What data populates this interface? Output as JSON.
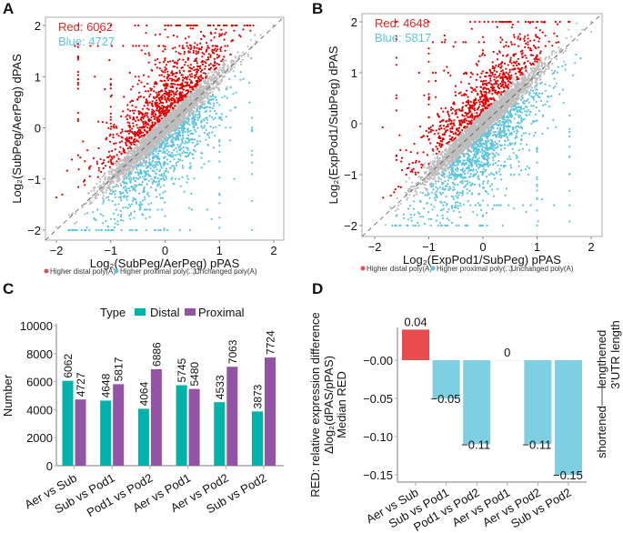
{
  "colors": {
    "red": "#e00000",
    "blue": "#5bc4dd",
    "gray": "#bdbdbd",
    "distal": "#00b2a9",
    "proximal": "#9354a6",
    "red_bar": "#e84c4c",
    "blue_bar": "#7ecfe2"
  },
  "legend_scatter": [
    "Higher distal poly(A)",
    "Higher proximal poly(A)",
    "Unchanged poly(A)"
  ],
  "chart_data": [
    {
      "panel": "A",
      "type": "scatter",
      "xlabel": "Log₂(SubPeg/AerPeg) pPAS",
      "ylabel": "Log₂(SubPeg/AerPeg) dPAS",
      "xlim": [
        -2,
        2
      ],
      "ylim": [
        -2,
        2
      ],
      "xticks": [
        "−2",
        "−1",
        "0",
        "1",
        "2"
      ],
      "yticks": [
        "−2",
        "−1",
        "0",
        "1",
        "2"
      ],
      "counts": {
        "red": 6062,
        "blue": 4727
      },
      "count_labels": {
        "red": "Red: 6062",
        "blue": "Blue: 4727"
      },
      "diagonal": "y = x (dashed)"
    },
    {
      "panel": "B",
      "type": "scatter",
      "xlabel": "Log₂(ExpPod1/SubPeg) pPAS",
      "ylabel": "Log₂(ExpPod1/SubPeg) dPAS",
      "xlim": [
        -2,
        2
      ],
      "ylim": [
        -2,
        2
      ],
      "xticks": [
        "−2",
        "−1",
        "0",
        "1",
        "2"
      ],
      "yticks": [
        "−2",
        "−1",
        "0",
        "1",
        "2"
      ],
      "counts": {
        "red": 4648,
        "blue": 5817
      },
      "count_labels": {
        "red": "Red: 4648",
        "blue": "Blue: 5817"
      },
      "diagonal": "y = x (dashed)"
    },
    {
      "panel": "C",
      "type": "bar",
      "ylabel": "Number",
      "ylim": [
        0,
        10000
      ],
      "yticks": [
        "0",
        "2000",
        "4000",
        "6000",
        "8000",
        "10000"
      ],
      "legend_title": "Type",
      "legend_placement": "top",
      "categories": [
        "Aer vs Sub",
        "Sub vs Pod1",
        "Pod1 vs Pod2",
        "Aer vs Pod1",
        "Aer vs Pod2",
        "Sub vs Pod2"
      ],
      "series": [
        {
          "name": "Distal",
          "values": [
            6062,
            4648,
            4064,
            5745,
            4533,
            3873
          ]
        },
        {
          "name": "Proximal",
          "values": [
            4727,
            5817,
            6886,
            5480,
            7063,
            7724
          ]
        }
      ]
    },
    {
      "panel": "D",
      "type": "bar",
      "ylabel_lines": [
        "RED: relative expression difference",
        "Δlog₂(dPAS/pPAS)",
        "Median RED"
      ],
      "right_labels": {
        "top": "lengthened",
        "bottom": "shortened",
        "axis": "3'UTR length"
      },
      "ylim": [
        -0.15,
        0.04
      ],
      "yticks": [
        {
          "v": 0,
          "t": "−0.00"
        },
        {
          "v": -0.05,
          "t": "−0.05"
        },
        {
          "v": -0.1,
          "t": "−0.10"
        },
        {
          "v": -0.15,
          "t": "−0.15"
        }
      ],
      "categories": [
        "Aer vs Sub",
        "Sub vs Pod1",
        "Pod1 vs Pod2",
        "Aer vs Pod1",
        "Aer vs Pod2",
        "Sub vs Pod2"
      ],
      "values": [
        0.04,
        -0.05,
        -0.11,
        0,
        -0.11,
        -0.15
      ],
      "value_labels": [
        "0.04",
        "−0.05",
        "−0.11",
        "0",
        "−0.11",
        "−0.15"
      ]
    }
  ],
  "panels": {
    "a": "A",
    "b": "B",
    "c": "C",
    "d": "D"
  }
}
